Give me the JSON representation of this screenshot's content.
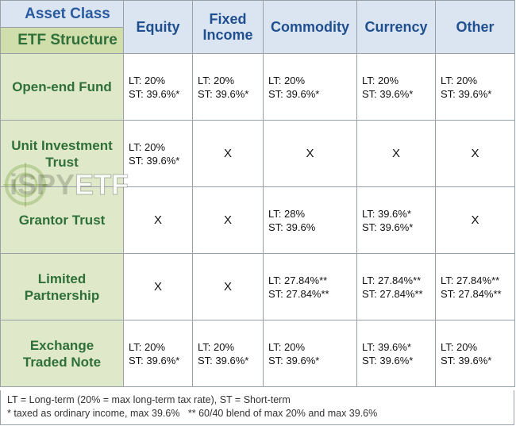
{
  "header": {
    "asset_class": "Asset Class",
    "etf_structure": "ETF Structure",
    "columns": [
      "Equity",
      "Fixed Income",
      "Commodity",
      "Currency",
      "Other"
    ]
  },
  "rows": [
    {
      "label": "Open-end Fund",
      "cells": [
        {
          "lt": "LT: 20%",
          "st": "ST: 39.6%*"
        },
        {
          "lt": "LT: 20%",
          "st": "ST: 39.6%*"
        },
        {
          "lt": "LT: 20%",
          "st": "ST: 39.6%*"
        },
        {
          "lt": "LT: 20%",
          "st": "ST: 39.6%*"
        },
        {
          "lt": "LT: 20%",
          "st": "ST: 39.6%*"
        }
      ]
    },
    {
      "label": "Unit Investment Trust",
      "cells": [
        {
          "lt": "LT: 20%",
          "st": "ST: 39.6%*"
        },
        {
          "x": "X"
        },
        {
          "x": "X"
        },
        {
          "x": "X"
        },
        {
          "x": "X"
        }
      ]
    },
    {
      "label": "Grantor Trust",
      "cells": [
        {
          "x": "X"
        },
        {
          "x": "X"
        },
        {
          "lt": "LT: 28%",
          "st": "ST: 39.6%"
        },
        {
          "lt": "LT: 39.6%*",
          "st": "ST: 39.6%*"
        },
        {
          "x": "X"
        }
      ]
    },
    {
      "label": "Limited Partnership",
      "cells": [
        {
          "x": "X"
        },
        {
          "x": "X"
        },
        {
          "lt": "LT: 27.84%**",
          "st": "ST: 27.84%**"
        },
        {
          "lt": "LT: 27.84%**",
          "st": "ST: 27.84%**"
        },
        {
          "lt": "LT: 27.84%**",
          "st": "ST: 27.84%**"
        }
      ]
    },
    {
      "label": "Exchange Traded Note",
      "cells": [
        {
          "lt": "LT: 20%",
          "st": "ST: 39.6%*"
        },
        {
          "lt": "LT: 20%",
          "st": "ST: 39.6%*"
        },
        {
          "lt": "LT: 20%",
          "st": "ST: 39.6%*"
        },
        {
          "lt": "LT: 39.6%*",
          "st": "ST: 39.6%*"
        },
        {
          "lt": "LT: 20%",
          "st": "ST: 39.6%*"
        }
      ]
    }
  ],
  "footer": {
    "line1": "LT = Long-term (20% = max long-term tax rate), ST = Short-term",
    "line2": "* taxed as ordinary income, max 39.6%   ** 60/40 blend of max 20% and max 39.6%"
  },
  "watermark": {
    "text_prefix": "iSPY",
    "text_suffix": "ETF"
  }
}
